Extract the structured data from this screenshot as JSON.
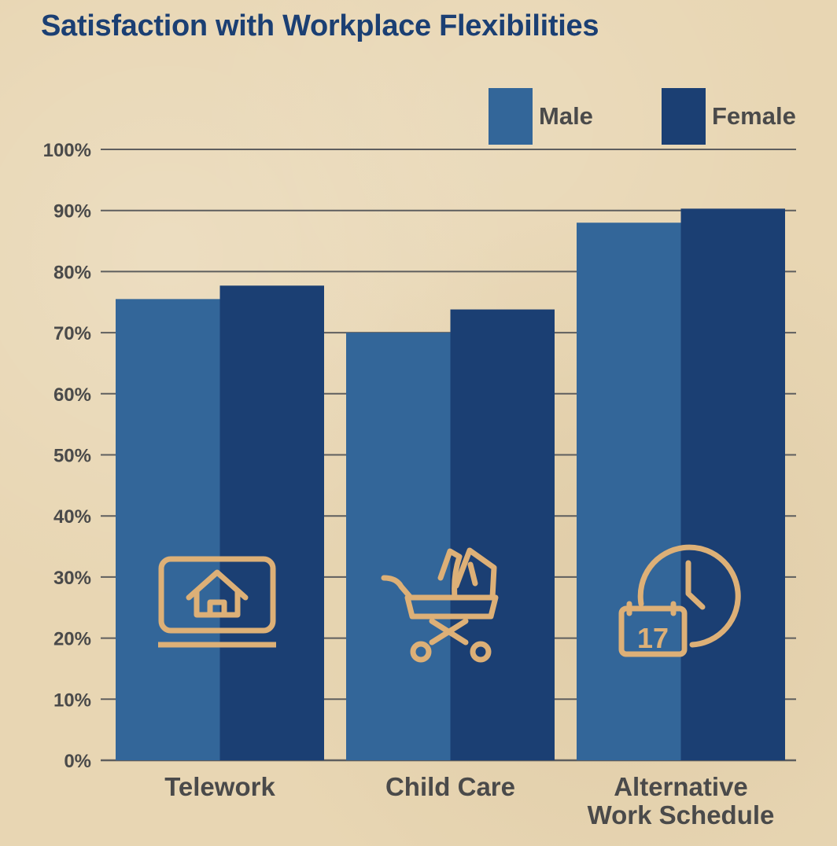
{
  "chart_data": {
    "type": "bar",
    "title": "Satisfaction with Workplace Flexibilities",
    "categories": [
      "Telework",
      "Child Care",
      "Alternative Work Schedule"
    ],
    "category_label_lines": [
      [
        "Telework"
      ],
      [
        "Child Care"
      ],
      [
        "Alternative",
        "Work Schedule"
      ]
    ],
    "category_icons": [
      "laptop-home-icon",
      "baby-stroller-icon",
      "calendar-clock-icon"
    ],
    "series": [
      {
        "name": "Male",
        "values": [
          75.5,
          70,
          88
        ],
        "color": "#336699"
      },
      {
        "name": "Female",
        "values": [
          77.7,
          73.8,
          90.3
        ],
        "color": "#1b3f73"
      }
    ],
    "ylim": [
      0,
      100
    ],
    "yticks": [
      "0%",
      "10%",
      "20%",
      "30%",
      "40%",
      "50%",
      "60%",
      "70%",
      "80%",
      "90%",
      "100%"
    ],
    "grid": true,
    "legend_position": "top-right",
    "xlabel": "",
    "ylabel": ""
  },
  "colors": {
    "title": "#1b3f73",
    "text": "#4a4a4a",
    "grid": "#5e5e5e",
    "icon": "#ddb077",
    "background": "#e8d6b3"
  }
}
